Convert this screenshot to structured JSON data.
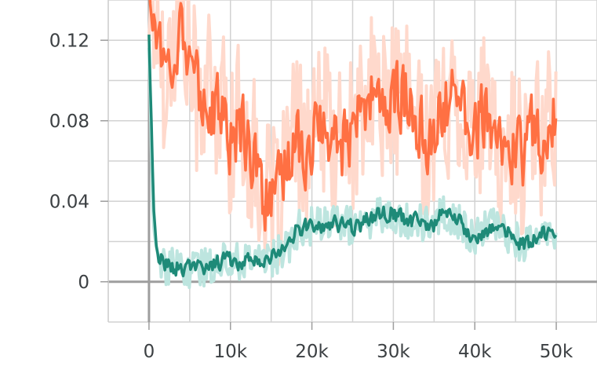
{
  "chart_data": {
    "type": "line",
    "xlim": [
      -5000,
      55000
    ],
    "ylim": [
      -0.02,
      0.14
    ],
    "x_ticks": [
      0,
      10000,
      20000,
      30000,
      40000,
      50000
    ],
    "x_tick_labels": [
      "0",
      "10k",
      "20k",
      "30k",
      "40k",
      "50k"
    ],
    "y_ticks": [
      0,
      0.04,
      0.08,
      0.12
    ],
    "y_tick_labels": [
      "0",
      "0.04",
      "0.08",
      "0.12"
    ],
    "grid": true,
    "legend": "none",
    "series": [
      {
        "color": "#ff7043",
        "raw_color": "#ffd9cc",
        "x": [
          0,
          1000,
          2000,
          3000,
          4000,
          5000,
          6000,
          7000,
          8000,
          9000,
          10000,
          11000,
          12000,
          13000,
          14000,
          15000,
          16000,
          17000,
          18000,
          19000,
          20000,
          21000,
          22000,
          23000,
          24000,
          25000,
          26000,
          27000,
          28000,
          29000,
          30000,
          31000,
          32000,
          33000,
          34000,
          35000,
          36000,
          37000,
          38000,
          39000,
          40000,
          41000,
          42000,
          43000,
          44000,
          45000,
          46000,
          47000,
          48000,
          49000,
          50000
        ],
        "values": [
          0.14,
          0.13,
          0.1,
          0.12,
          0.13,
          0.11,
          0.09,
          0.1,
          0.08,
          0.09,
          0.07,
          0.08,
          0.07,
          0.06,
          0.045,
          0.035,
          0.045,
          0.06,
          0.075,
          0.065,
          0.07,
          0.08,
          0.075,
          0.065,
          0.07,
          0.075,
          0.08,
          0.09,
          0.1,
          0.085,
          0.09,
          0.095,
          0.085,
          0.08,
          0.07,
          0.075,
          0.085,
          0.09,
          0.095,
          0.08,
          0.075,
          0.085,
          0.07,
          0.06,
          0.065,
          0.07,
          0.06,
          0.075,
          0.07,
          0.085,
          0.08
        ],
        "noise": 0.025
      },
      {
        "color": "#1e8a78",
        "raw_color": "#bde5df",
        "x": [
          0,
          500,
          1000,
          2000,
          3000,
          4000,
          5000,
          6000,
          7000,
          8000,
          9000,
          10000,
          11000,
          12000,
          13000,
          14000,
          15000,
          16000,
          17000,
          18000,
          19000,
          20000,
          21000,
          22000,
          23000,
          24000,
          25000,
          26000,
          27000,
          28000,
          29000,
          30000,
          31000,
          32000,
          33000,
          34000,
          35000,
          36000,
          37000,
          38000,
          39000,
          40000,
          41000,
          42000,
          43000,
          44000,
          45000,
          46000,
          47000,
          48000,
          49000,
          50000
        ],
        "values": [
          0.117,
          0.03,
          0.013,
          0.008,
          0.007,
          0.007,
          0.006,
          0.008,
          0.007,
          0.009,
          0.01,
          0.011,
          0.01,
          0.012,
          0.01,
          0.013,
          0.012,
          0.014,
          0.016,
          0.025,
          0.027,
          0.028,
          0.027,
          0.03,
          0.028,
          0.03,
          0.027,
          0.029,
          0.031,
          0.033,
          0.035,
          0.034,
          0.032,
          0.031,
          0.03,
          0.028,
          0.029,
          0.035,
          0.032,
          0.03,
          0.024,
          0.022,
          0.025,
          0.028,
          0.026,
          0.024,
          0.022,
          0.018,
          0.021,
          0.024,
          0.023,
          0.02
        ],
        "noise": 0.006
      }
    ]
  }
}
